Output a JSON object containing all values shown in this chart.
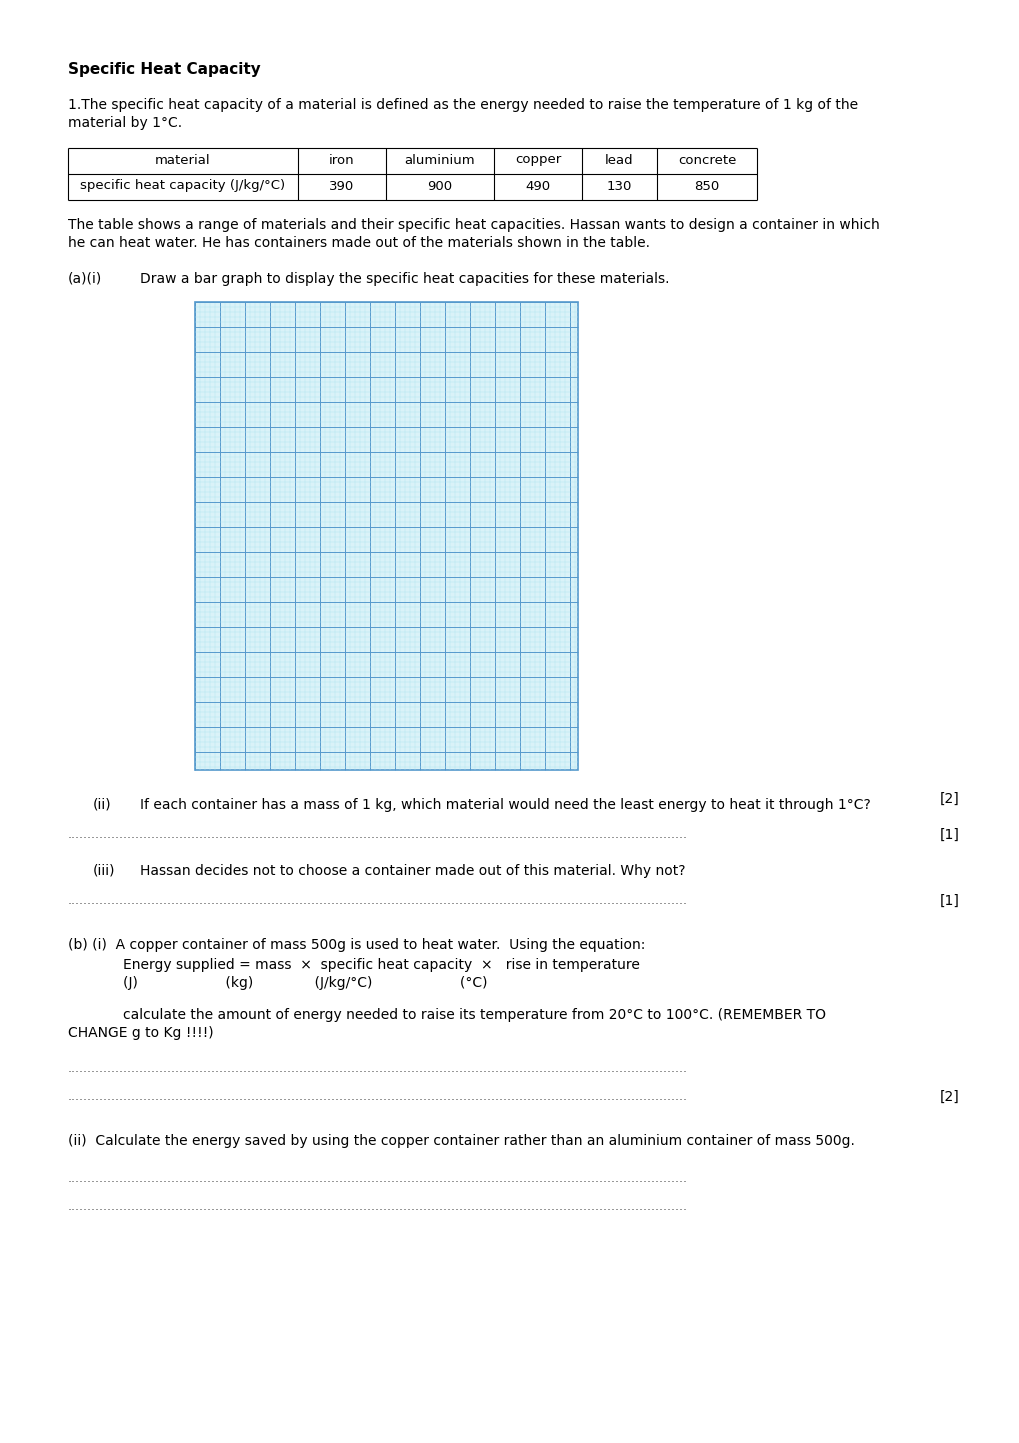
{
  "title": "Specific Heat Capacity",
  "paragraph1": "1.The specific heat capacity of a material is defined as the energy needed to raise the temperature of 1 kg of the\nmaterial by 1°C.",
  "table_headers": [
    "material",
    "iron",
    "aluminium",
    "copper",
    "lead",
    "concrete"
  ],
  "table_row_label": "specific heat capacity (J/kg/°C)",
  "table_values": [
    "390",
    "900",
    "490",
    "130",
    "850"
  ],
  "paragraph2": "The table shows a range of materials and their specific heat capacities. Hassan wants to design a container in which\nhe can heat water. He has containers made out of the materials shown in the table.",
  "grid_color_minor": "#aee4f0",
  "grid_color_major": "#5599cc",
  "grid_bg": "#daf2f8",
  "bg_color": "#ffffff",
  "text_color": "#000000"
}
